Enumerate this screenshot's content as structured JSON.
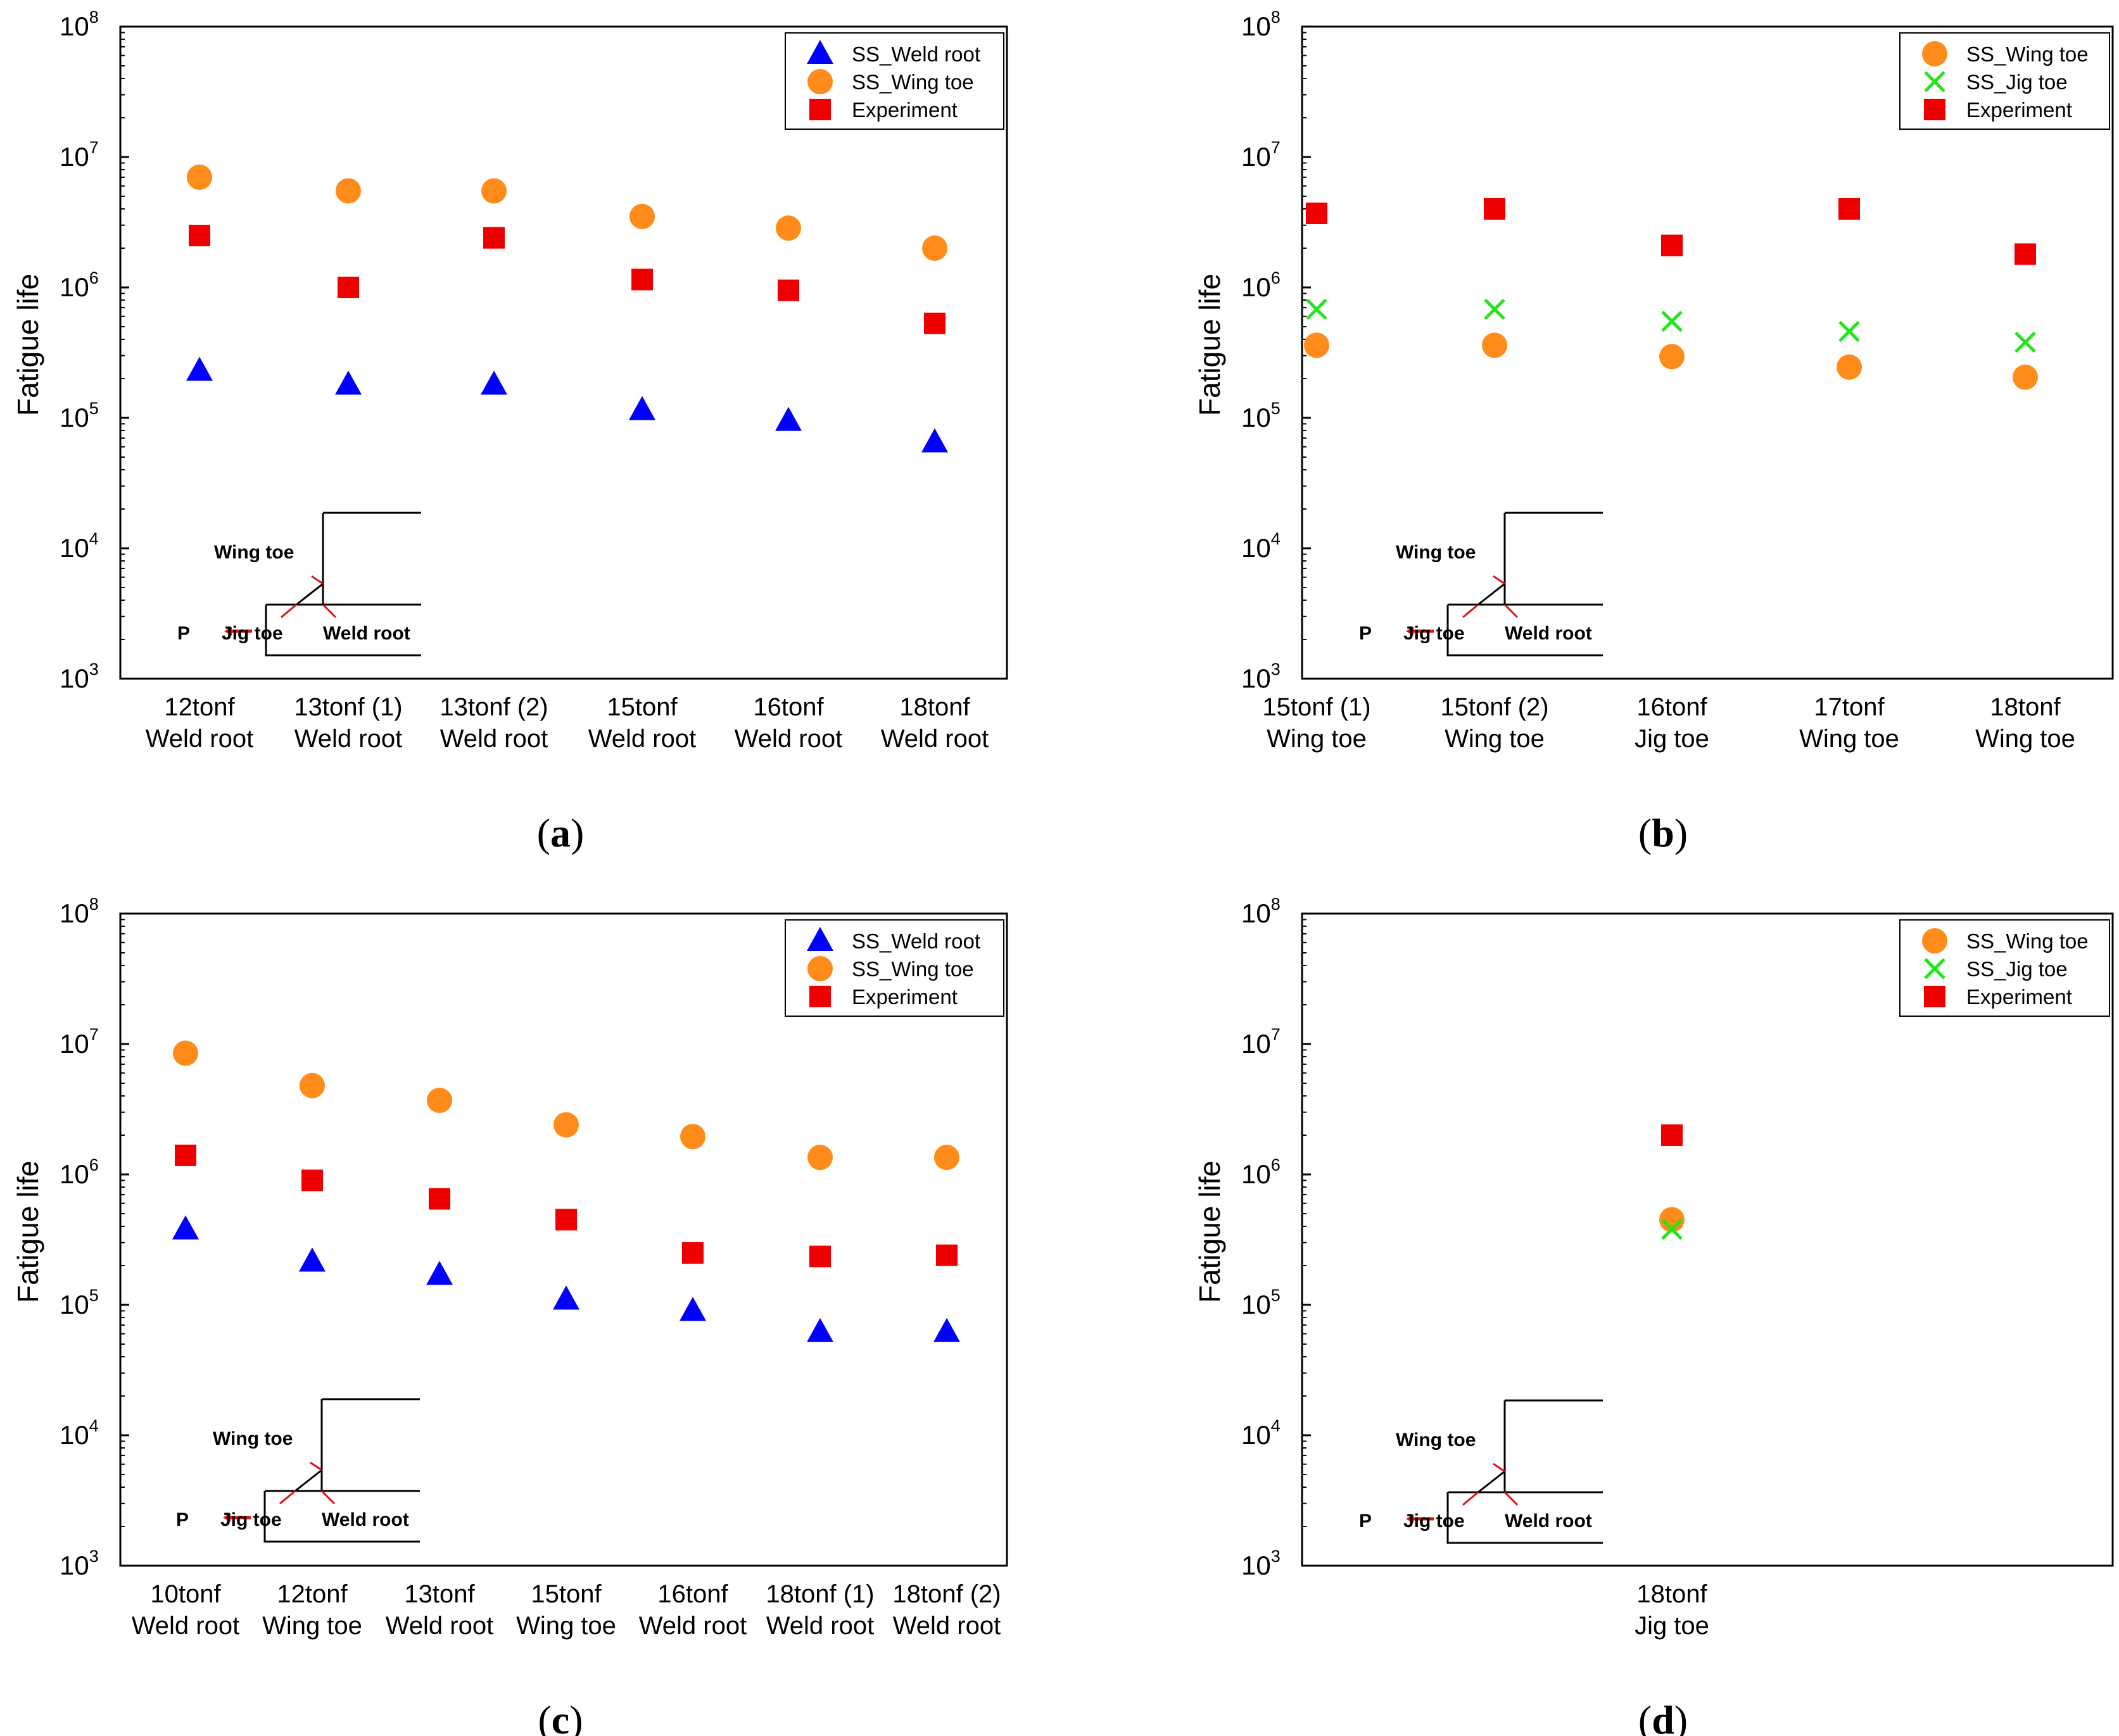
{
  "colors": {
    "ss_weld_root": "#0000ff",
    "ss_wing_toe": "#ff8c1a",
    "ss_jig_toe": "#22e61b",
    "experiment": "#ee0000",
    "axis": "#000000",
    "inset_arrow": "#e01010"
  },
  "inset": {
    "wing_toe": "Wing toe",
    "jig_toe": "Jig toe",
    "weld_root": "Weld root",
    "load": "P"
  },
  "chart_data": [
    {
      "panel": "a",
      "panel_label_open": "(",
      "panel_letter": "a",
      "panel_label_close": ")",
      "type": "scatter",
      "scale": "log",
      "ylabel": "Fatigue life",
      "ylim": [
        1000,
        100000000
      ],
      "y_ticks": [
        {
          "base": "10",
          "exp": "3"
        },
        {
          "base": "10",
          "exp": "4"
        },
        {
          "base": "10",
          "exp": "5"
        },
        {
          "base": "10",
          "exp": "6"
        },
        {
          "base": "10",
          "exp": "7"
        },
        {
          "base": "10",
          "exp": "8"
        }
      ],
      "categories": [
        {
          "line1": "12tonf",
          "line2": "Weld root"
        },
        {
          "line1": "13tonf (1)",
          "line2": "Weld root"
        },
        {
          "line1": "13tonf (2)",
          "line2": "Weld root"
        },
        {
          "line1": "15tonf",
          "line2": "Weld root"
        },
        {
          "line1": "16tonf",
          "line2": "Weld root"
        },
        {
          "line1": "18tonf",
          "line2": "Weld root"
        }
      ],
      "legend": {
        "position": "top-right"
      },
      "series": [
        {
          "name": "SS_Weld root",
          "marker": "triangle",
          "color_key": "ss_weld_root",
          "values": [
            230000,
            180000,
            180000,
            115000,
            95000,
            65000
          ]
        },
        {
          "name": "SS_Wing toe",
          "marker": "circle",
          "color_key": "ss_wing_toe",
          "values": [
            7000000,
            5500000,
            5500000,
            3500000,
            2850000,
            2000000
          ]
        },
        {
          "name": "Experiment",
          "marker": "square",
          "color_key": "experiment",
          "values": [
            2500000,
            1000000,
            2400000,
            1150000,
            950000,
            530000
          ]
        }
      ]
    },
    {
      "panel": "b",
      "panel_label_open": "(",
      "panel_letter": "b",
      "panel_label_close": ")",
      "type": "scatter",
      "scale": "log",
      "ylabel": "Fatigue life",
      "ylim": [
        1000,
        100000000
      ],
      "y_ticks": [
        {
          "base": "10",
          "exp": "3"
        },
        {
          "base": "10",
          "exp": "4"
        },
        {
          "base": "10",
          "exp": "5"
        },
        {
          "base": "10",
          "exp": "6"
        },
        {
          "base": "10",
          "exp": "7"
        },
        {
          "base": "10",
          "exp": "8"
        }
      ],
      "categories": [
        {
          "line1": "15tonf (1)",
          "line2": "Wing toe"
        },
        {
          "line1": "15tonf (2)",
          "line2": "Wing toe"
        },
        {
          "line1": "16tonf",
          "line2": "Jig toe"
        },
        {
          "line1": "17tonf",
          "line2": "Wing toe"
        },
        {
          "line1": "18tonf",
          "line2": "Wing toe"
        }
      ],
      "legend": {
        "position": "top-right"
      },
      "series": [
        {
          "name": "SS_Wing toe",
          "marker": "circle",
          "color_key": "ss_wing_toe",
          "values": [
            360000,
            360000,
            295000,
            245000,
            205000
          ]
        },
        {
          "name": "SS_Jig toe",
          "marker": "cross",
          "color_key": "ss_jig_toe",
          "values": [
            680000,
            680000,
            550000,
            460000,
            380000
          ]
        },
        {
          "name": "Experiment",
          "marker": "square",
          "color_key": "experiment",
          "values": [
            3700000,
            4000000,
            2100000,
            4000000,
            1800000
          ]
        }
      ]
    },
    {
      "panel": "c",
      "panel_label_open": "(",
      "panel_letter": "c",
      "panel_label_close": ")",
      "type": "scatter",
      "scale": "log",
      "ylabel": "Fatigue life",
      "ylim": [
        1000,
        100000000
      ],
      "y_ticks": [
        {
          "base": "10",
          "exp": "3"
        },
        {
          "base": "10",
          "exp": "4"
        },
        {
          "base": "10",
          "exp": "5"
        },
        {
          "base": "10",
          "exp": "6"
        },
        {
          "base": "10",
          "exp": "7"
        },
        {
          "base": "10",
          "exp": "8"
        }
      ],
      "categories": [
        {
          "line1": "10tonf",
          "line2": "Weld root"
        },
        {
          "line1": "12tonf",
          "line2": "Wing toe"
        },
        {
          "line1": "13tonf",
          "line2": "Weld root"
        },
        {
          "line1": "15tonf",
          "line2": "Wing toe"
        },
        {
          "line1": "16tonf",
          "line2": "Weld root"
        },
        {
          "line1": "18tonf (1)",
          "line2": "Weld root"
        },
        {
          "line1": "18tonf (2)",
          "line2": "Weld root"
        }
      ],
      "legend": {
        "position": "top-right"
      },
      "series": [
        {
          "name": "SS_Weld root",
          "marker": "triangle",
          "color_key": "ss_weld_root",
          "values": [
            380000,
            215000,
            170000,
            110000,
            90000,
            62000,
            62000
          ]
        },
        {
          "name": "SS_Wing toe",
          "marker": "circle",
          "color_key": "ss_wing_toe",
          "values": [
            8500000,
            4800000,
            3700000,
            2400000,
            1950000,
            1350000,
            1350000
          ]
        },
        {
          "name": "Experiment",
          "marker": "square",
          "color_key": "experiment",
          "values": [
            1400000,
            900000,
            650000,
            450000,
            250000,
            235000,
            240000
          ]
        }
      ]
    },
    {
      "panel": "d",
      "panel_label_open": "(",
      "panel_letter": "d",
      "panel_label_close": ")",
      "type": "scatter",
      "scale": "log",
      "ylabel": "Fatigue life",
      "ylim": [
        1000,
        100000000
      ],
      "y_ticks": [
        {
          "base": "10",
          "exp": "3"
        },
        {
          "base": "10",
          "exp": "4"
        },
        {
          "base": "10",
          "exp": "5"
        },
        {
          "base": "10",
          "exp": "6"
        },
        {
          "base": "10",
          "exp": "7"
        },
        {
          "base": "10",
          "exp": "8"
        }
      ],
      "categories": [
        {
          "line1": "18tonf",
          "line2": "Jig toe"
        }
      ],
      "legend": {
        "position": "top-right"
      },
      "series": [
        {
          "name": "SS_Wing toe",
          "marker": "circle",
          "color_key": "ss_wing_toe",
          "values": [
            450000
          ]
        },
        {
          "name": "SS_Jig toe",
          "marker": "cross",
          "color_key": "ss_jig_toe",
          "values": [
            380000
          ]
        },
        {
          "name": "Experiment",
          "marker": "square",
          "color_key": "experiment",
          "values": [
            2000000
          ]
        }
      ]
    }
  ]
}
